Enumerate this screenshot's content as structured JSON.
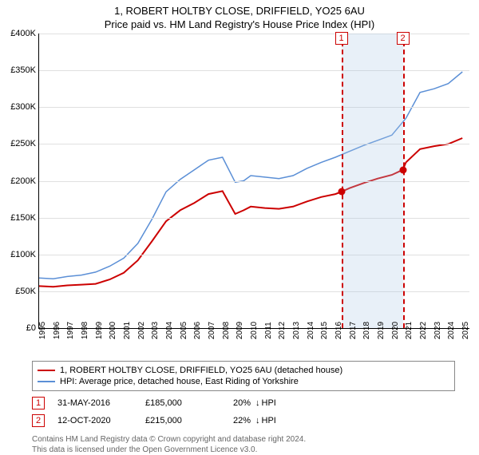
{
  "title": "1, ROBERT HOLTBY CLOSE, DRIFFIELD, YO25 6AU",
  "subtitle": "Price paid vs. HM Land Registry's House Price Index (HPI)",
  "chart": {
    "type": "line",
    "background_color": "#ffffff",
    "grid_color": "#e0e0e0",
    "axis_color": "#000000",
    "xlim": [
      1995,
      2025.5
    ],
    "ylim": [
      0,
      400000
    ],
    "ytick_step": 50000,
    "yticks": [
      "£0",
      "£50K",
      "£100K",
      "£150K",
      "£200K",
      "£250K",
      "£300K",
      "£350K",
      "£400K"
    ],
    "xticks": [
      1995,
      1996,
      1997,
      1998,
      1999,
      2000,
      2001,
      2002,
      2003,
      2004,
      2005,
      2006,
      2007,
      2008,
      2009,
      2010,
      2011,
      2012,
      2013,
      2014,
      2015,
      2016,
      2017,
      2018,
      2019,
      2020,
      2021,
      2022,
      2023,
      2024,
      2025
    ],
    "shade_band": {
      "start": 2016.42,
      "end": 2020.78,
      "color": "rgba(173,200,230,0.28)"
    },
    "series": [
      {
        "name": "property",
        "label": "1, ROBERT HOLTBY CLOSE, DRIFFIELD, YO25 6AU (detached house)",
        "color": "#cc0000",
        "line_width": 2,
        "points": [
          [
            1995,
            57000
          ],
          [
            1996,
            56000
          ],
          [
            1997,
            58000
          ],
          [
            1998,
            59000
          ],
          [
            1999,
            60000
          ],
          [
            2000,
            66000
          ],
          [
            2001,
            75000
          ],
          [
            2002,
            92000
          ],
          [
            2003,
            118000
          ],
          [
            2004,
            145000
          ],
          [
            2005,
            160000
          ],
          [
            2006,
            170000
          ],
          [
            2007,
            182000
          ],
          [
            2008,
            186000
          ],
          [
            2008.9,
            155000
          ],
          [
            2009.5,
            160000
          ],
          [
            2010,
            165000
          ],
          [
            2011,
            163000
          ],
          [
            2012,
            162000
          ],
          [
            2013,
            165000
          ],
          [
            2014,
            172000
          ],
          [
            2015,
            178000
          ],
          [
            2016,
            182000
          ],
          [
            2016.42,
            185000
          ],
          [
            2017,
            190000
          ],
          [
            2018,
            197000
          ],
          [
            2019,
            203000
          ],
          [
            2020,
            208000
          ],
          [
            2020.78,
            215000
          ],
          [
            2021,
            225000
          ],
          [
            2022,
            243000
          ],
          [
            2023,
            247000
          ],
          [
            2024,
            250000
          ],
          [
            2025,
            258000
          ]
        ]
      },
      {
        "name": "hpi",
        "label": "HPI: Average price, detached house, East Riding of Yorkshire",
        "color": "#5b8fd6",
        "line_width": 1.5,
        "points": [
          [
            1995,
            68000
          ],
          [
            1996,
            67000
          ],
          [
            1997,
            70000
          ],
          [
            1998,
            72000
          ],
          [
            1999,
            76000
          ],
          [
            2000,
            84000
          ],
          [
            2001,
            95000
          ],
          [
            2002,
            115000
          ],
          [
            2003,
            148000
          ],
          [
            2004,
            185000
          ],
          [
            2005,
            202000
          ],
          [
            2006,
            215000
          ],
          [
            2007,
            228000
          ],
          [
            2008,
            232000
          ],
          [
            2008.9,
            198000
          ],
          [
            2009.5,
            200000
          ],
          [
            2010,
            207000
          ],
          [
            2011,
            205000
          ],
          [
            2012,
            203000
          ],
          [
            2013,
            207000
          ],
          [
            2014,
            217000
          ],
          [
            2015,
            225000
          ],
          [
            2016,
            232000
          ],
          [
            2017,
            240000
          ],
          [
            2018,
            248000
          ],
          [
            2019,
            255000
          ],
          [
            2020,
            262000
          ],
          [
            2021,
            285000
          ],
          [
            2022,
            320000
          ],
          [
            2023,
            325000
          ],
          [
            2024,
            332000
          ],
          [
            2025,
            348000
          ]
        ]
      }
    ],
    "event_lines": [
      {
        "x": 2016.42,
        "label": "1",
        "color": "#cc0000"
      },
      {
        "x": 2020.78,
        "label": "2",
        "color": "#cc0000"
      }
    ],
    "markers": [
      {
        "x": 2016.42,
        "y": 185000,
        "color": "#cc0000"
      },
      {
        "x": 2020.78,
        "y": 215000,
        "color": "#cc0000"
      }
    ]
  },
  "legend": [
    {
      "color": "#cc0000",
      "label_path": "chart.series.0.label"
    },
    {
      "color": "#5b8fd6",
      "label_path": "chart.series.1.label"
    }
  ],
  "events": [
    {
      "num": "1",
      "date": "31-MAY-2016",
      "price": "£185,000",
      "pct": "20%",
      "arrow": "↓",
      "ref": "HPI"
    },
    {
      "num": "2",
      "date": "12-OCT-2020",
      "price": "£215,000",
      "pct": "22%",
      "arrow": "↓",
      "ref": "HPI"
    }
  ],
  "footer": {
    "line1": "Contains HM Land Registry data © Crown copyright and database right 2024.",
    "line2": "This data is licensed under the Open Government Licence v3.0."
  }
}
